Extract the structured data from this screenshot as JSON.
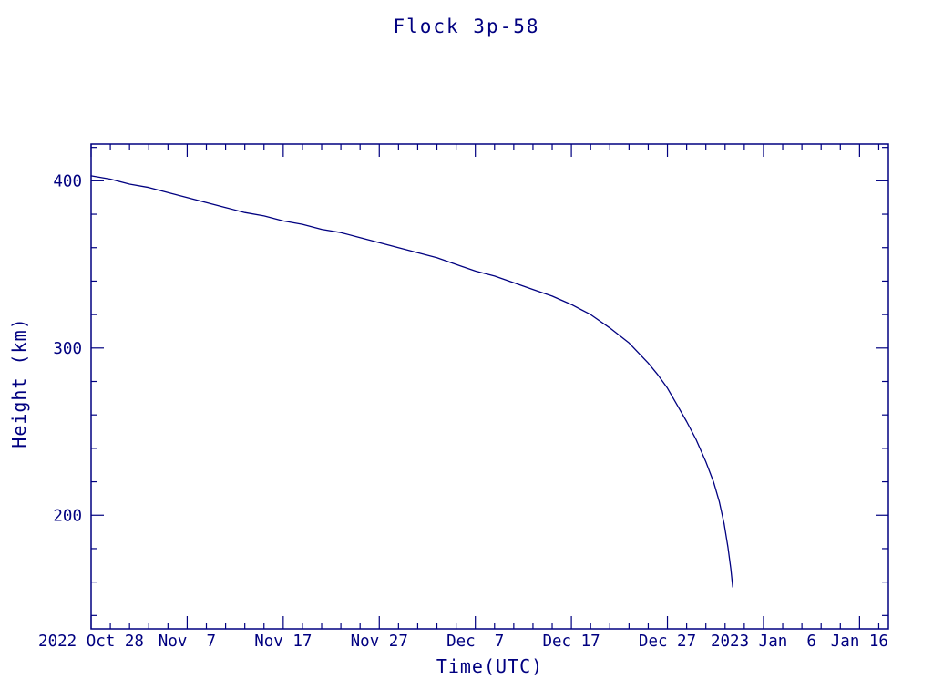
{
  "page": {
    "background": "#ffffff"
  },
  "colors": {
    "accent": "#000080",
    "background": "#ffffff"
  },
  "chart_data": {
    "type": "line",
    "title": "Flock 3p-58",
    "xlabel": "Time(UTC)",
    "ylabel": "Height (km)",
    "x_unit": "days since 2022 Oct 28",
    "xlim": [
      0,
      83
    ],
    "ylim": [
      132,
      422
    ],
    "grid": false,
    "legend": "none",
    "x_ticks": [
      {
        "day": 0,
        "label": "2022 Oct 28"
      },
      {
        "day": 10,
        "label": "Nov  7"
      },
      {
        "day": 20,
        "label": "Nov 17"
      },
      {
        "day": 30,
        "label": "Nov 27"
      },
      {
        "day": 40,
        "label": "Dec  7"
      },
      {
        "day": 50,
        "label": "Dec 17"
      },
      {
        "day": 60,
        "label": "Dec 27"
      },
      {
        "day": 70,
        "label": "2023 Jan  6"
      },
      {
        "day": 80,
        "label": "Jan 16"
      }
    ],
    "x_minor_tick_step_days": 2,
    "y_ticks": [
      {
        "value": 200,
        "label": "200"
      },
      {
        "value": 300,
        "label": "300"
      },
      {
        "value": 400,
        "label": "400"
      }
    ],
    "y_minor_tick_step": 20,
    "series": [
      {
        "name": "Flock 3p-58",
        "points_day_km": [
          [
            0,
            403
          ],
          [
            2,
            401
          ],
          [
            4,
            398
          ],
          [
            6,
            396
          ],
          [
            8,
            393
          ],
          [
            10,
            390
          ],
          [
            12,
            387
          ],
          [
            14,
            384
          ],
          [
            16,
            381
          ],
          [
            18,
            379
          ],
          [
            20,
            376
          ],
          [
            22,
            374
          ],
          [
            24,
            371
          ],
          [
            26,
            369
          ],
          [
            28,
            366
          ],
          [
            30,
            363
          ],
          [
            32,
            360
          ],
          [
            34,
            357
          ],
          [
            36,
            354
          ],
          [
            38,
            350
          ],
          [
            40,
            346
          ],
          [
            42,
            343
          ],
          [
            44,
            339
          ],
          [
            46,
            335
          ],
          [
            48,
            331
          ],
          [
            50,
            326
          ],
          [
            52,
            320
          ],
          [
            54,
            312
          ],
          [
            56,
            303
          ],
          [
            58,
            291
          ],
          [
            59,
            284
          ],
          [
            60,
            276
          ],
          [
            61,
            266
          ],
          [
            62,
            256
          ],
          [
            63,
            245
          ],
          [
            64,
            232
          ],
          [
            64.8,
            220
          ],
          [
            65.4,
            208
          ],
          [
            65.9,
            195
          ],
          [
            66.3,
            181
          ],
          [
            66.6,
            168
          ],
          [
            66.8,
            157
          ]
        ]
      }
    ]
  }
}
